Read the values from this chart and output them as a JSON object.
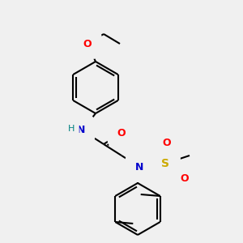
{
  "background_color": "#f0f0f0",
  "bond_color": "#000000",
  "bond_width": 1.5,
  "atom_colors": {
    "C": "#000000",
    "N": "#0000cc",
    "O": "#ff0000",
    "S": "#ccaa00",
    "H": "#000000"
  },
  "figsize": [
    3.0,
    3.0
  ],
  "dpi": 100
}
